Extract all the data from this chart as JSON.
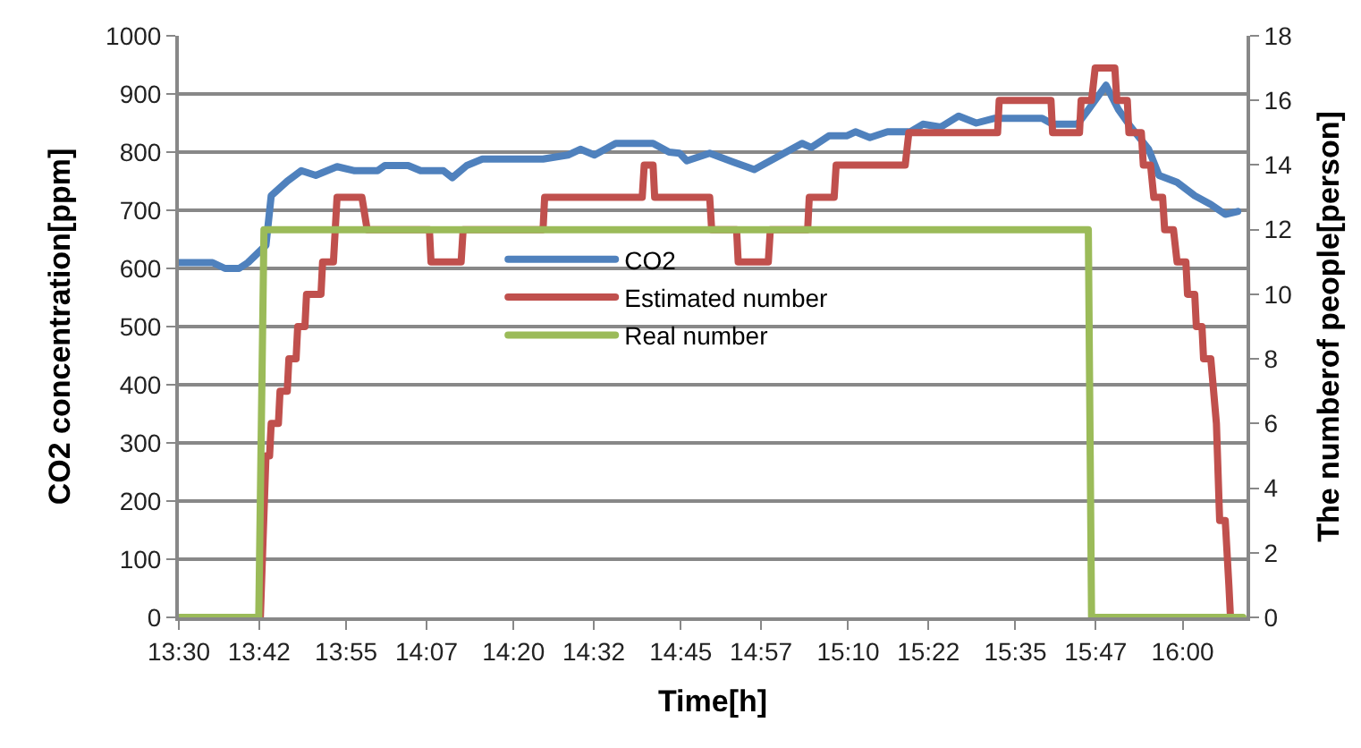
{
  "chart_data": {
    "type": "line",
    "xlabel": "Time[h]",
    "ylabel": "CO2 concentration[ppm]",
    "y2label": "The numberof people[person]",
    "xlim": [
      13.5,
      16.159
    ],
    "xticks": [
      {
        "value": 13.5,
        "label": "13:30"
      },
      {
        "value": 13.7,
        "label": "13:42"
      },
      {
        "value": 13.9167,
        "label": "13:55"
      },
      {
        "value": 14.1167,
        "label": "14:07"
      },
      {
        "value": 14.3333,
        "label": "14:20"
      },
      {
        "value": 14.5333,
        "label": "14:32"
      },
      {
        "value": 14.75,
        "label": "14:45"
      },
      {
        "value": 14.95,
        "label": "14:57"
      },
      {
        "value": 15.1667,
        "label": "15:10"
      },
      {
        "value": 15.3667,
        "label": "15:22"
      },
      {
        "value": 15.5833,
        "label": "15:35"
      },
      {
        "value": 15.7833,
        "label": "15:47"
      },
      {
        "value": 16.0,
        "label": "16:00"
      }
    ],
    "ylim": [
      0,
      1000
    ],
    "yticks": [
      0,
      100,
      200,
      300,
      400,
      500,
      600,
      700,
      800,
      900,
      1000
    ],
    "y2lim": [
      0,
      18
    ],
    "y2ticks": [
      0,
      2,
      4,
      6,
      8,
      10,
      12,
      14,
      16,
      18
    ],
    "grid": "y",
    "legend": "center",
    "marker": "none",
    "line_style": "solid",
    "series": [
      {
        "name": "CO2",
        "color": "#4f81bd",
        "x": [
          13.5,
          13.584,
          13.615,
          13.65,
          13.672,
          13.717,
          13.73,
          13.77,
          13.805,
          13.841,
          13.894,
          13.938,
          13.995,
          14.013,
          14.071,
          14.102,
          14.159,
          14.181,
          14.217,
          14.256,
          14.407,
          14.469,
          14.5,
          14.535,
          14.588,
          14.681,
          14.721,
          14.747,
          14.765,
          14.822,
          14.88,
          14.933,
          14.999,
          15.052,
          15.075,
          15.119,
          15.163,
          15.185,
          15.221,
          15.265,
          15.322,
          15.353,
          15.397,
          15.442,
          15.486,
          15.53,
          15.65,
          15.676,
          15.738,
          15.765,
          15.809,
          15.84,
          15.871,
          15.915,
          15.941,
          15.986,
          16.03,
          16.07,
          16.106,
          16.137
        ],
        "values": [
          610,
          610,
          600,
          600,
          610,
          640,
          725,
          750,
          768,
          760,
          775,
          768,
          768,
          777,
          777,
          768,
          768,
          756,
          777,
          788,
          788,
          795,
          805,
          795,
          815,
          815,
          800,
          798,
          785,
          798,
          783,
          770,
          795,
          815,
          808,
          828,
          828,
          835,
          825,
          835,
          835,
          848,
          843,
          862,
          850,
          858,
          858,
          848,
          848,
          873,
          915,
          873,
          843,
          805,
          760,
          748,
          725,
          710,
          693,
          698
        ]
      },
      {
        "name": "Estimated number",
        "color": "#c0504d",
        "axis": "y2",
        "x": [
          13.5,
          13.703,
          13.717,
          13.726,
          13.73,
          13.748,
          13.752,
          13.77,
          13.774,
          13.792,
          13.796,
          13.814,
          13.818,
          13.854,
          13.858,
          13.885,
          13.894,
          13.956,
          13.969,
          14.124,
          14.128,
          14.203,
          14.208,
          14.407,
          14.411,
          14.654,
          14.659,
          14.681,
          14.685,
          14.822,
          14.827,
          14.889,
          14.893,
          14.968,
          14.973,
          15.066,
          15.07,
          15.132,
          15.137,
          15.309,
          15.318,
          15.539,
          15.543,
          15.672,
          15.676,
          15.743,
          15.747,
          15.773,
          15.782,
          15.831,
          15.836,
          15.862,
          15.866,
          15.897,
          15.902,
          15.92,
          15.928,
          15.95,
          15.955,
          15.977,
          15.986,
          16.008,
          16.012,
          16.03,
          16.034,
          16.048,
          16.052,
          16.07,
          16.084,
          16.092,
          16.106,
          16.115,
          16.119
        ],
        "values": [
          0,
          0,
          5,
          5,
          6,
          6,
          7,
          7,
          8,
          8,
          9,
          9,
          10,
          10,
          11,
          11,
          13,
          13,
          12,
          12,
          11,
          11,
          12,
          12,
          13,
          13,
          14,
          14,
          13,
          13,
          12,
          12,
          11,
          11,
          12,
          12,
          13,
          13,
          14,
          14,
          15,
          15,
          16,
          16,
          15,
          15,
          16,
          16,
          17,
          17,
          16,
          16,
          15,
          15,
          14,
          14,
          13,
          13,
          12,
          12,
          11,
          11,
          10,
          10,
          9,
          9,
          8,
          8,
          6,
          3,
          3,
          1,
          0
        ]
      },
      {
        "name": "Real number",
        "color": "#9bbb59",
        "axis": "y2",
        "x": [
          13.5,
          13.699,
          13.712,
          15.765,
          15.773,
          16.15
        ],
        "values": [
          0,
          0,
          12,
          12,
          0,
          0
        ]
      }
    ]
  }
}
